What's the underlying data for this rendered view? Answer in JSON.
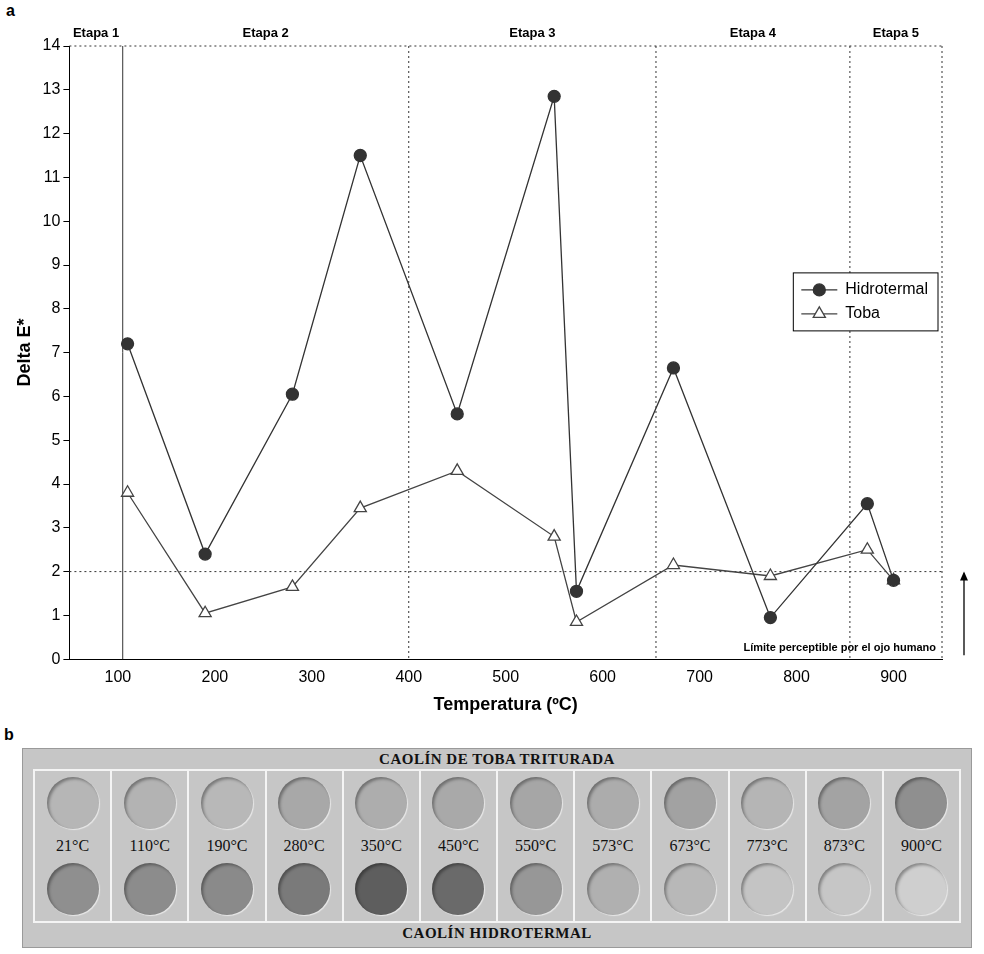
{
  "chart_data": {
    "type": "line",
    "panel_label": "a",
    "x_label": "Temperatura (ºC)",
    "y_label": "Delta E*",
    "xlim": [
      50,
      950
    ],
    "xticks": [
      100,
      200,
      300,
      400,
      500,
      600,
      700,
      800,
      900
    ],
    "ylim": [
      0,
      14
    ],
    "yticks": [
      0,
      1,
      2,
      3,
      4,
      5,
      6,
      7,
      8,
      9,
      10,
      11,
      12,
      13,
      14
    ],
    "grid": false,
    "legend": "right",
    "series": [
      {
        "name": "Hidrotermal",
        "color": "#333333",
        "marker": "circle",
        "line_style": "solid",
        "x": [
          110,
          190,
          280,
          350,
          450,
          550,
          573,
          673,
          773,
          873,
          900
        ],
        "values": [
          7.2,
          2.4,
          6.05,
          11.5,
          5.6,
          12.85,
          1.55,
          6.65,
          0.95,
          3.55,
          1.8
        ]
      },
      {
        "name": "Toba",
        "color": "#444444",
        "marker": "triangle-open",
        "line_style": "solid",
        "x": [
          110,
          190,
          280,
          350,
          450,
          550,
          573,
          673,
          773,
          873,
          900
        ],
        "values": [
          3.8,
          1.05,
          1.65,
          3.45,
          4.3,
          2.8,
          0.85,
          2.15,
          1.9,
          2.5,
          1.8
        ]
      }
    ],
    "stage_labels": [
      "Etapa 1",
      "Etapa 2",
      "Etapa 3",
      "Etapa 4",
      "Etapa 5"
    ],
    "stage_boundaries": [
      105,
      400,
      655,
      855
    ],
    "threshold": {
      "value": 2,
      "label": "Límite perceptible por el ojo humano"
    }
  },
  "photo": {
    "panel_label": "b",
    "top_label": "CAOLÍN DE TOBA TRITURADA",
    "bottom_label": "CAOLÍN HIDROTERMAL",
    "temperatures": [
      "21°C",
      "110°C",
      "190°C",
      "280°C",
      "350°C",
      "450°C",
      "550°C",
      "573°C",
      "673°C",
      "773°C",
      "873°C",
      "900°C"
    ],
    "top_colors": [
      "#b6b6b6",
      "#b3b3b3",
      "#b8b8b8",
      "#a8a8a8",
      "#adadad",
      "#a9a9a9",
      "#a6a6a6",
      "#acacac",
      "#a2a2a2",
      "#b5b5b5",
      "#a3a3a3",
      "#8f8f8f"
    ],
    "bottom_colors": [
      "#8f8f8f",
      "#8c8c8c",
      "#8a8a8a",
      "#7a7a7a",
      "#5e5e5e",
      "#6a6a6a",
      "#979797",
      "#b0b0b0",
      "#b8b8b8",
      "#c4c4c4",
      "#c6c6c6",
      "#cfcfcf"
    ]
  }
}
